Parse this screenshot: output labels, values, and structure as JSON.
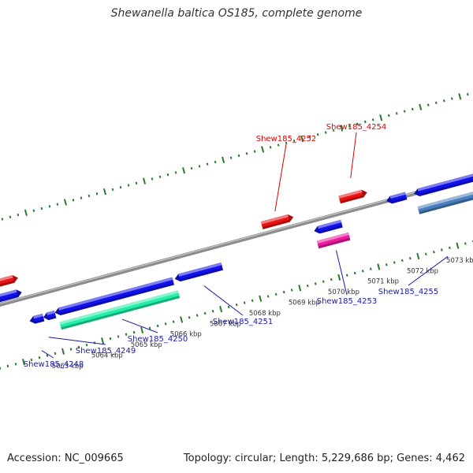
{
  "title": "Shewanella baltica OS185, complete genome",
  "footer": {
    "accession": "Accession: NC_009665",
    "topology": "Topology: circular; Length: 5,229,686 bp; Genes: 4,462"
  },
  "map": {
    "view_kbp_range": [
      5062.5,
      5073.5
    ],
    "scale_ticks": [
      "5063 kbp",
      "5064 kbp",
      "5065 kbp",
      "5066 kbp",
      "5067 kbp",
      "5068 kbp",
      "5069 kbp",
      "5070 kbp",
      "5071 kbp",
      "5072 kbp",
      "5073 kbp"
    ],
    "gene_labels": [
      {
        "name": "Shew185_4248",
        "strand": "reverse"
      },
      {
        "name": "Shew185_4249",
        "strand": "reverse"
      },
      {
        "name": "Shew185_4250",
        "strand": "reverse"
      },
      {
        "name": "Shew185_4251",
        "strand": "reverse"
      },
      {
        "name": "Shew185_4252",
        "strand": "forward"
      },
      {
        "name": "Shew185_4253",
        "strand": "reverse"
      },
      {
        "name": "Shew185_4254",
        "strand": "forward"
      },
      {
        "name": "Shew185_4255",
        "strand": "reverse"
      }
    ]
  },
  "colors": {
    "forward_gene": "#ee1111",
    "reverse_gene": "#1111ee",
    "highlight_green": "#22f0a6",
    "highlight_pink": "#ee1aa0",
    "steel_gene": "#4a7fbf",
    "backbone": "#8c8c8c",
    "ticks": "#2a7a2a",
    "label_forward": "#dd0000",
    "label_reverse": "#1a1aaa"
  }
}
